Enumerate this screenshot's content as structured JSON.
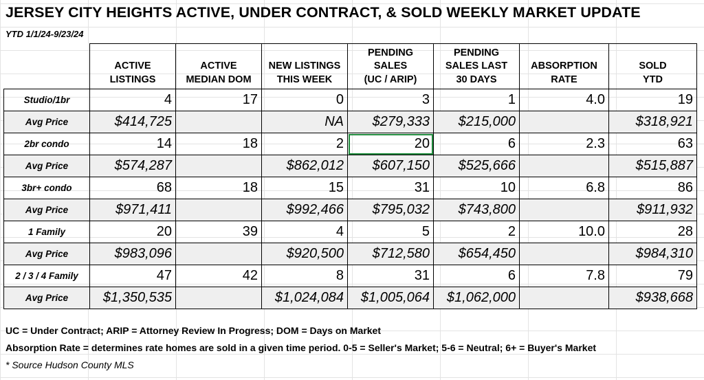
{
  "title": "JERSEY CITY HEIGHTS ACTIVE, UNDER CONTRACT, & SOLD WEEKLY MARKET UPDATE",
  "ytd": "YTD 1/1/24-9/23/24",
  "columns": [
    {
      "line1": "",
      "line2": "",
      "line3": ""
    },
    {
      "line1": "",
      "line2": "ACTIVE",
      "line3": "LISTINGS"
    },
    {
      "line1": "",
      "line2": "ACTIVE",
      "line3": "MEDIAN DOM"
    },
    {
      "line1": "",
      "line2": "NEW LISTINGS",
      "line3": "THIS WEEK"
    },
    {
      "line1": "PENDING",
      "line2": "SALES",
      "line3": "(UC / ARIP)"
    },
    {
      "line1": "PENDING",
      "line2": "SALES LAST",
      "line3": "30 DAYS"
    },
    {
      "line1": "",
      "line2": "ABSORPTION",
      "line3": "RATE"
    },
    {
      "line1": "",
      "line2": "SOLD",
      "line3": "YTD"
    }
  ],
  "rows": [
    {
      "label": "Studio/1br",
      "type": "count",
      "cells": [
        "4",
        "17",
        "0",
        "3",
        "1",
        "4.0",
        "19"
      ]
    },
    {
      "label": "Avg Price",
      "type": "price",
      "cells": [
        "$414,725",
        "",
        "NA",
        "$279,333",
        "$215,000",
        "",
        "$318,921"
      ]
    },
    {
      "label": "2br condo",
      "type": "count",
      "cells": [
        "14",
        "18",
        "2",
        "20",
        "6",
        "2.3",
        "63"
      ]
    },
    {
      "label": "Avg Price",
      "type": "price",
      "cells": [
        "$574,287",
        "",
        "$862,012",
        "$607,150",
        "$525,666",
        "",
        "$515,887"
      ]
    },
    {
      "label": "3br+ condo",
      "type": "count",
      "cells": [
        "68",
        "18",
        "15",
        "31",
        "10",
        "6.8",
        "86"
      ]
    },
    {
      "label": "Avg Price",
      "type": "price",
      "cells": [
        "$971,411",
        "",
        "$992,466",
        "$795,032",
        "$743,800",
        "",
        "$911,932"
      ]
    },
    {
      "label": "1 Family",
      "type": "count",
      "cells": [
        "20",
        "39",
        "4",
        "5",
        "2",
        "10.0",
        "28"
      ]
    },
    {
      "label": "Avg Price",
      "type": "price",
      "cells": [
        "$983,096",
        "",
        "$920,500",
        "$712,580",
        "$654,450",
        "",
        "$984,310"
      ]
    },
    {
      "label": "2 / 3 / 4 Family",
      "type": "count",
      "cells": [
        "47",
        "42",
        "8",
        "31",
        "6",
        "7.8",
        "79"
      ]
    },
    {
      "label": "Avg Price",
      "type": "price",
      "cells": [
        "$1,350,535",
        "",
        "$1,024,084",
        "$1,005,064",
        "$1,062,000",
        "",
        "$938,668"
      ]
    }
  ],
  "notes": {
    "legend": "UC = Under Contract; ARIP = Attorney Review In Progress; DOM = Days on Market",
    "absorption": "Absorption Rate = determines rate homes are sold in a given time period.  0-5 = Seller's Market; 5-6 = Neutral; 6+ = Buyer's Market",
    "source": "* Source Hudson County MLS"
  },
  "colors": {
    "selected_cell_border": "#1f8a3c",
    "price_row_fill": "#efefef",
    "gridline": "#e3e3e3"
  }
}
